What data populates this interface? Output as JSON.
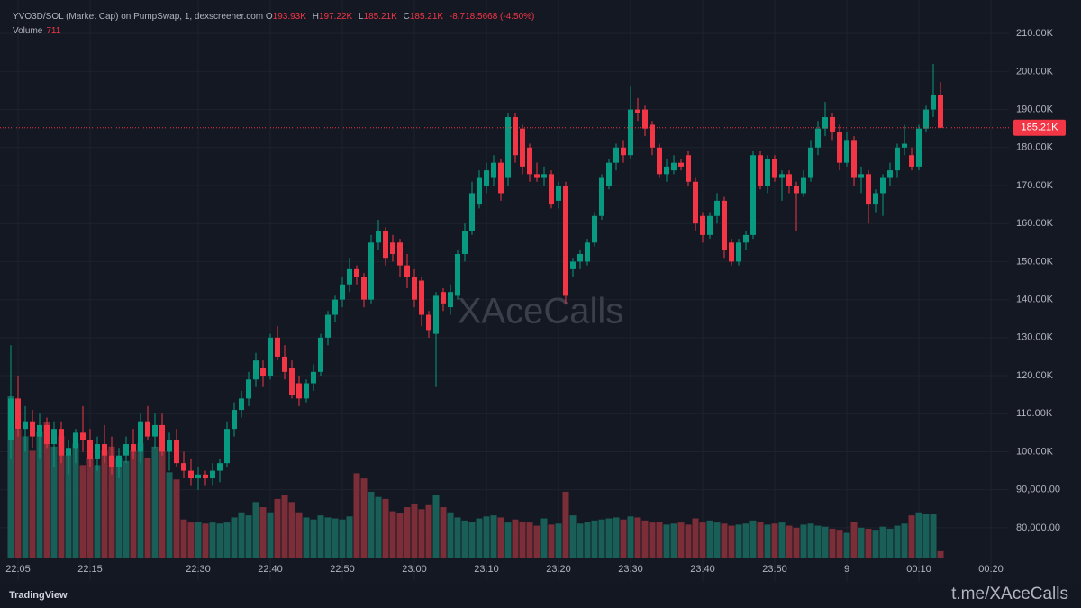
{
  "chart_data": {
    "type": "candlestick",
    "title": "YVO3D/SOL (Market Cap) on PumpSwap, 1, dexscreener.com",
    "legend_letters": [
      "O",
      "H",
      "L",
      "C"
    ],
    "legend_values": [
      "193.93K",
      "197.22K",
      "185.21K",
      "185.21K"
    ],
    "change_label": "-8,718.5668 (-4.50%)",
    "volume_title": "Volume",
    "last_price_label": "185.21K",
    "watermark": "XAceCalls",
    "brand": "TradingView",
    "footer_link": "t.me/XAceCalls",
    "up_color": "#089981",
    "down_color": "#f23645",
    "up_volume_color": "#1a5f57",
    "down_volume_color": "#7c2e38",
    "grid": true,
    "x": [
      "22:04",
      "22:05",
      "22:06",
      "22:07",
      "22:08",
      "22:09",
      "22:10",
      "22:11",
      "22:12",
      "22:13",
      "22:14",
      "22:15",
      "22:16",
      "22:17",
      "22:18",
      "22:19",
      "22:20",
      "22:21",
      "22:22",
      "22:23",
      "22:24",
      "22:25",
      "22:26",
      "22:27",
      "22:28",
      "22:29",
      "22:30",
      "22:31",
      "22:32",
      "22:33",
      "22:34",
      "22:35",
      "22:36",
      "22:37",
      "22:38",
      "22:39",
      "22:40",
      "22:41",
      "22:42",
      "22:43",
      "22:44",
      "22:45",
      "22:46",
      "22:47",
      "22:48",
      "22:49",
      "22:50",
      "22:51",
      "22:52",
      "22:53",
      "22:54",
      "22:55",
      "22:56",
      "22:57",
      "22:58",
      "22:59",
      "23:00",
      "23:01",
      "23:02",
      "23:03",
      "23:04",
      "23:05",
      "23:06",
      "23:07",
      "23:08",
      "23:09",
      "23:10",
      "23:11",
      "23:12",
      "23:13",
      "23:14",
      "23:15",
      "23:16",
      "23:17",
      "23:18",
      "23:19",
      "23:20",
      "23:21",
      "23:22",
      "23:23",
      "23:24",
      "23:25",
      "23:26",
      "23:27",
      "23:28",
      "23:29",
      "23:30",
      "23:31",
      "23:32",
      "23:33",
      "23:34",
      "23:35",
      "23:36",
      "23:37",
      "23:38",
      "23:39",
      "23:40",
      "23:41",
      "23:42",
      "23:43",
      "23:44",
      "23:45",
      "23:46",
      "23:47",
      "23:48",
      "23:49",
      "23:50",
      "23:51",
      "23:52",
      "23:53",
      "23:54",
      "23:55",
      "23:56",
      "23:57",
      "23:58",
      "23:59",
      "00:00",
      "00:01",
      "00:02",
      "00:03",
      "00:04",
      "00:05",
      "00:06",
      "00:07",
      "00:08",
      "00:09",
      "00:10",
      "00:11",
      "00:12",
      "00:13"
    ],
    "open": [
      103000,
      114000,
      106000,
      108000,
      104000,
      107000,
      102000,
      106000,
      99000,
      101000,
      105000,
      103000,
      98000,
      102000,
      99000,
      96000,
      99000,
      102000,
      100000,
      108000,
      104000,
      107000,
      100000,
      103000,
      97000,
      95000,
      93000,
      94000,
      93000,
      95000,
      97000,
      106000,
      111000,
      114000,
      119000,
      122000,
      120000,
      130000,
      125000,
      122000,
      118000,
      114000,
      118000,
      121000,
      130000,
      136000,
      140000,
      144000,
      148000,
      146000,
      140000,
      155000,
      158000,
      155000,
      155000,
      149000,
      146000,
      145000,
      136000,
      131000,
      142000,
      138000,
      141000,
      152000,
      158000,
      165000,
      170000,
      172000,
      176000,
      172000,
      188000,
      185000,
      180000,
      173000,
      172000,
      173000,
      166000,
      170000,
      148000,
      150000,
      150000,
      155000,
      162000,
      170000,
      176000,
      180000,
      178000,
      190000,
      190000,
      186000,
      180000,
      173000,
      174000,
      176000,
      178000,
      171000,
      162000,
      157000,
      162000,
      166000,
      155000,
      150000,
      155000,
      157000,
      178000,
      170000,
      177000,
      172000,
      173000,
      170000,
      168000,
      172000,
      180000,
      185000,
      188000,
      184000,
      176000,
      182000,
      172000,
      173000,
      165000,
      168000,
      172000,
      174000,
      180000,
      178000,
      175000,
      185000,
      190000,
      193930
    ],
    "high": [
      128000,
      120000,
      112000,
      111000,
      110000,
      109000,
      108000,
      108000,
      103000,
      106000,
      112000,
      106000,
      104000,
      107000,
      104000,
      101000,
      104000,
      106000,
      110000,
      112000,
      110000,
      110000,
      105000,
      106000,
      100000,
      98000,
      96000,
      95000,
      97000,
      98000,
      108000,
      113000,
      116000,
      121000,
      126000,
      124000,
      131000,
      133000,
      128000,
      124000,
      120000,
      119000,
      123000,
      131000,
      137000,
      141000,
      146000,
      151000,
      149000,
      147000,
      157000,
      161000,
      159000,
      157000,
      156000,
      152000,
      148000,
      146000,
      137000,
      142000,
      143000,
      144000,
      153000,
      160000,
      171000,
      174000,
      176000,
      178000,
      177000,
      189000,
      189000,
      186000,
      181000,
      176000,
      175000,
      174000,
      171000,
      171000,
      151000,
      153000,
      156000,
      163000,
      173000,
      177000,
      181000,
      182000,
      196000,
      193000,
      191000,
      187000,
      181000,
      177000,
      178000,
      177000,
      179000,
      172000,
      163000,
      163000,
      168000,
      167000,
      156000,
      156000,
      158000,
      179000,
      179000,
      178000,
      178000,
      174000,
      174000,
      171000,
      174000,
      182000,
      187000,
      192000,
      189000,
      186000,
      184000,
      183000,
      175000,
      174000,
      169000,
      173000,
      176000,
      181000,
      186000,
      180000,
      186000,
      191000,
      202000,
      197220
    ],
    "low": [
      98000,
      104000,
      100000,
      101000,
      98000,
      101000,
      96000,
      97000,
      94000,
      97000,
      100000,
      96000,
      95000,
      97000,
      94000,
      93000,
      97000,
      98000,
      97000,
      103000,
      101000,
      99000,
      95000,
      96000,
      93000,
      91000,
      90000,
      91000,
      91000,
      92000,
      96000,
      104000,
      109000,
      112000,
      117000,
      117000,
      119000,
      124000,
      119000,
      114000,
      112000,
      113000,
      116000,
      120000,
      128000,
      134000,
      138000,
      142000,
      144000,
      138000,
      139000,
      153000,
      149000,
      150000,
      146000,
      143000,
      138000,
      133000,
      130000,
      117000,
      137000,
      136000,
      140000,
      150000,
      157000,
      164000,
      168000,
      170000,
      166000,
      170000,
      176000,
      173000,
      171000,
      171000,
      170000,
      164000,
      164000,
      139000,
      146000,
      148000,
      149000,
      154000,
      161000,
      169000,
      174000,
      176000,
      177000,
      187000,
      183000,
      178000,
      172000,
      171000,
      173000,
      174000,
      170000,
      158000,
      155000,
      156000,
      160000,
      151000,
      149000,
      149000,
      153000,
      156000,
      169000,
      168000,
      171000,
      166000,
      168000,
      158000,
      167000,
      171000,
      178000,
      183000,
      182000,
      174000,
      175000,
      170000,
      168000,
      160000,
      163000,
      162000,
      170000,
      172000,
      178000,
      174000,
      174000,
      184000,
      188000,
      185210
    ],
    "close": [
      114000,
      106000,
      108000,
      104000,
      107000,
      102000,
      106000,
      99000,
      101000,
      105000,
      103000,
      98000,
      102000,
      99000,
      96000,
      99000,
      102000,
      100000,
      108000,
      104000,
      107000,
      100000,
      103000,
      97000,
      95000,
      93000,
      94000,
      93000,
      95000,
      97000,
      106000,
      111000,
      114000,
      119000,
      124000,
      120000,
      130000,
      125000,
      121000,
      115000,
      114000,
      118000,
      121000,
      130000,
      136000,
      140000,
      144000,
      148000,
      146000,
      140000,
      155000,
      158000,
      151000,
      152000,
      149000,
      146000,
      140000,
      136000,
      132000,
      141000,
      139000,
      142000,
      152000,
      158000,
      168000,
      172000,
      174000,
      176000,
      168000,
      188000,
      178000,
      175000,
      173000,
      172000,
      173000,
      165000,
      170000,
      141000,
      150000,
      152000,
      155000,
      162000,
      172000,
      176000,
      180000,
      178000,
      190000,
      189000,
      185000,
      180000,
      173000,
      175000,
      176000,
      175000,
      171000,
      160000,
      157000,
      162000,
      166000,
      153000,
      150000,
      155000,
      157000,
      178000,
      170000,
      177000,
      172000,
      173000,
      170000,
      168000,
      172000,
      180000,
      185000,
      188000,
      184000,
      176000,
      182000,
      172000,
      173000,
      165000,
      168000,
      172000,
      174000,
      180000,
      181000,
      175000,
      185000,
      190000,
      193930,
      185210
    ],
    "volume": [
      15800,
      12600,
      11900,
      10500,
      12300,
      13300,
      10900,
      11900,
      10100,
      11200,
      9100,
      9800,
      9100,
      10500,
      10900,
      9800,
      9500,
      10500,
      11200,
      9800,
      10900,
      10500,
      8400,
      7700,
      3800,
      3500,
      3600,
      3400,
      3500,
      3400,
      3500,
      4000,
      4500,
      4200,
      5500,
      5000,
      4500,
      5800,
      6200,
      5500,
      4500,
      4000,
      3800,
      4200,
      4000,
      3900,
      3800,
      4100,
      8300,
      7800,
      6500,
      6000,
      5800,
      4600,
      4400,
      5000,
      5300,
      4800,
      5200,
      6200,
      5000,
      4500,
      4000,
      3700,
      3600,
      3900,
      4100,
      4200,
      4000,
      3500,
      3800,
      3600,
      3500,
      3200,
      3900,
      3300,
      3400,
      6500,
      4200,
      3400,
      3600,
      3700,
      3800,
      3900,
      4000,
      3800,
      4100,
      4000,
      3700,
      3500,
      3600,
      3300,
      3400,
      3500,
      3300,
      3900,
      3500,
      3700,
      3500,
      3400,
      3200,
      3300,
      3400,
      3700,
      3600,
      3300,
      3400,
      3500,
      3200,
      3000,
      3300,
      3400,
      3200,
      3100,
      2900,
      2800,
      2500,
      3600,
      3000,
      2900,
      2800,
      3100,
      2900,
      3200,
      3400,
      4200,
      4500,
      4300,
      4300,
      711
    ],
    "ylim": [
      66000,
      218800
    ],
    "yticks": [
      {
        "value": 210000,
        "label": "210.00K"
      },
      {
        "value": 200000,
        "label": "200.00K"
      },
      {
        "value": 190000,
        "label": "190.00K"
      },
      {
        "value": 180000,
        "label": "180.00K"
      },
      {
        "value": 170000,
        "label": "170.00K"
      },
      {
        "value": 160000,
        "label": "160.00K"
      },
      {
        "value": 150000,
        "label": "150.00K"
      },
      {
        "value": 140000,
        "label": "140.00K"
      },
      {
        "value": 130000,
        "label": "130.00K"
      },
      {
        "value": 120000,
        "label": "120.00K"
      },
      {
        "value": 110000,
        "label": "110.00K"
      },
      {
        "value": 100000,
        "label": "100.00K"
      },
      {
        "value": 90000,
        "label": "90,000.00"
      },
      {
        "value": 80000,
        "label": "80,000.00"
      }
    ],
    "xticks": [
      {
        "value": "22:05",
        "label": "22:05"
      },
      {
        "value": "22:15",
        "label": "22:15"
      },
      {
        "value": "22:30",
        "label": "22:30"
      },
      {
        "value": "22:40",
        "label": "22:40"
      },
      {
        "value": "22:50",
        "label": "22:50"
      },
      {
        "value": "23:00",
        "label": "23:00"
      },
      {
        "value": "23:10",
        "label": "23:10"
      },
      {
        "value": "23:20",
        "label": "23:20"
      },
      {
        "value": "23:30",
        "label": "23:30"
      },
      {
        "value": "23:40",
        "label": "23:40"
      },
      {
        "value": "23:50",
        "label": "23:50"
      },
      {
        "value": "00:00",
        "label": "9"
      },
      {
        "value": "00:10",
        "label": "00:10"
      },
      {
        "value": "00:20",
        "label": "00:20"
      }
    ]
  }
}
